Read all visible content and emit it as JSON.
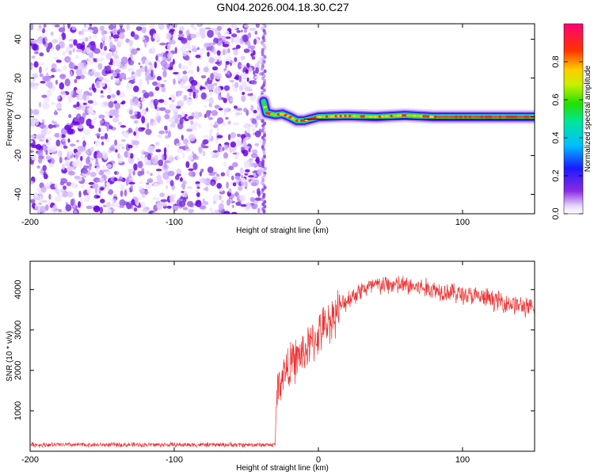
{
  "title": "GN04.2026.004.18.30.C27",
  "chart_data": [
    {
      "type": "heatmap",
      "xlabel": "Height of straight line (km)",
      "ylabel": "Frequency (Hz)",
      "xlim": [
        -200,
        150
      ],
      "ylim": [
        -50,
        48
      ],
      "xticks": [
        -200,
        -100,
        0,
        100
      ],
      "yticks": [
        -40,
        -20,
        0,
        20,
        40
      ],
      "noise_region_x": [
        -200,
        -38
      ],
      "line_region_x": [
        -38,
        150
      ],
      "line_frequency_trace": [
        {
          "x": -38,
          "y": 8
        },
        {
          "x": -36,
          "y": 2
        },
        {
          "x": -30,
          "y": 1
        },
        {
          "x": -25,
          "y": 1.5
        },
        {
          "x": -20,
          "y": 0
        },
        {
          "x": -15,
          "y": -2
        },
        {
          "x": -10,
          "y": -2
        },
        {
          "x": -5,
          "y": -1
        },
        {
          "x": 0,
          "y": 0
        },
        {
          "x": 20,
          "y": 0.5
        },
        {
          "x": 40,
          "y": 0
        },
        {
          "x": 60,
          "y": 0.8
        },
        {
          "x": 80,
          "y": 0
        },
        {
          "x": 100,
          "y": 0
        },
        {
          "x": 120,
          "y": 0
        },
        {
          "x": 150,
          "y": 0
        }
      ],
      "colorbar": {
        "label": "Normalized spectral amplitude",
        "ticks": [
          "0.0",
          "0.2",
          "0.4",
          "0.6",
          "0.8"
        ],
        "tick_values": [
          0,
          0.2,
          0.4,
          0.6,
          0.8
        ],
        "range": [
          0,
          1
        ]
      }
    },
    {
      "type": "line",
      "xlabel": "Height of straight line (km)",
      "ylabel": "SNR (10 * v/v)",
      "xlim": [
        -200,
        150
      ],
      "ylim": [
        0,
        4700
      ],
      "xticks": [
        -200,
        -100,
        0,
        100
      ],
      "yticks": [
        1000,
        2000,
        3000,
        4000
      ],
      "series": [
        {
          "name": "SNR",
          "color": "#ee3333",
          "x": [
            -200,
            -150,
            -100,
            -50,
            -30,
            -29,
            -25,
            -20,
            -15,
            -10,
            -5,
            0,
            5,
            10,
            20,
            30,
            40,
            50,
            60,
            70,
            80,
            90,
            100,
            110,
            120,
            130,
            140,
            150
          ],
          "y": [
            160,
            160,
            160,
            160,
            160,
            1400,
            1900,
            2100,
            2300,
            2450,
            2650,
            2900,
            3100,
            3350,
            3750,
            4000,
            4100,
            4120,
            4100,
            4050,
            4000,
            3950,
            3880,
            3820,
            3760,
            3680,
            3600,
            3500
          ]
        }
      ]
    }
  ]
}
